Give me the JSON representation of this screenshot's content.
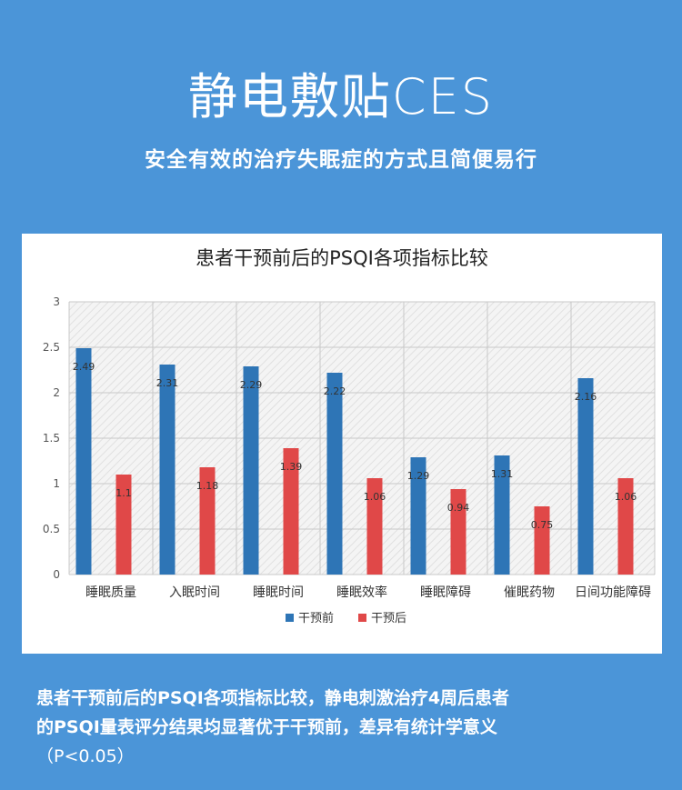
{
  "header": {
    "title": "静电敷贴CES",
    "subtitle": "安全有效的治疗失眠症的方式且简便易行"
  },
  "chart_data": {
    "type": "bar",
    "title": "患者干预前后的PSQI各项指标比较",
    "categories": [
      "睡眠质量",
      "入眠时间",
      "睡眠时间",
      "睡眠效率",
      "睡眠障碍",
      "催眠药物",
      "日间功能障碍"
    ],
    "series": [
      {
        "name": "干预前",
        "values": [
          2.49,
          2.31,
          2.29,
          2.22,
          1.29,
          1.31,
          2.16
        ],
        "color": "#2e75b6"
      },
      {
        "name": "干预后",
        "values": [
          1.1,
          1.18,
          1.39,
          1.06,
          0.94,
          0.75,
          1.06
        ],
        "color": "#e04848"
      }
    ],
    "ylim": [
      0,
      3
    ],
    "yticks": [
      "0",
      "0.5",
      "1",
      "1.5",
      "2",
      "2.5",
      "3"
    ],
    "grid": true,
    "legend": "bottom"
  },
  "caption": {
    "line1": "患者干预前后的PSQI各项指标比较，静电刺激治疗4周后患者",
    "line2": "的PSQI量表评分结果均显著优于干预前，差异有统计学意义",
    "note": "（P<0.05）"
  }
}
